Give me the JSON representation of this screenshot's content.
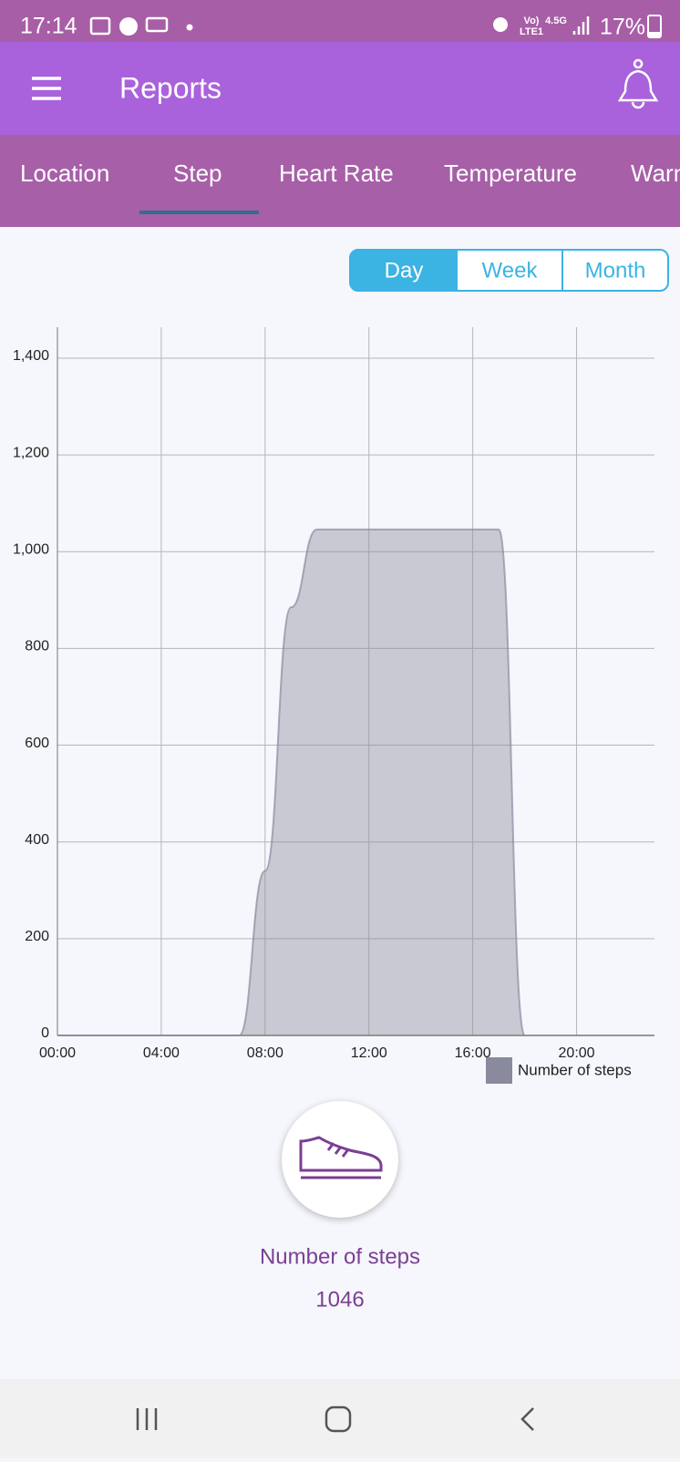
{
  "status_bar": {
    "time": "17:14",
    "volte": "Vo)",
    "lte": "LTE1",
    "network": "4.5G",
    "battery": "17%"
  },
  "app_bar": {
    "title": "Reports"
  },
  "tabs": [
    "Location",
    "Step",
    "Heart Rate",
    "Temperature",
    "Warning"
  ],
  "period_toggle": [
    "Day",
    "Week",
    "Month"
  ],
  "chart_data": {
    "type": "area",
    "x": [
      0,
      1,
      2,
      3,
      4,
      5,
      6,
      7,
      8,
      9,
      10,
      11,
      12,
      13,
      14,
      15,
      16,
      17,
      18
    ],
    "series": [
      {
        "name": "Number of steps",
        "color": "#8a8a9e",
        "values": [
          0,
          0,
          0,
          0,
          0,
          0,
          0,
          0,
          340,
          885,
          1046,
          1046,
          1046,
          1046,
          1046,
          1046,
          1046,
          1046,
          0
        ]
      }
    ],
    "xlim": [
      0,
      23
    ],
    "xticks": [
      {
        "value": 0,
        "label": "00:00"
      },
      {
        "value": 4,
        "label": "04:00"
      },
      {
        "value": 8,
        "label": "08:00"
      },
      {
        "value": 12,
        "label": "12:00"
      },
      {
        "value": 16,
        "label": "16:00"
      },
      {
        "value": 20,
        "label": "20:00"
      }
    ],
    "ylim": [
      0,
      1464
    ],
    "yticks": [
      0,
      200,
      400,
      600,
      800,
      {
        "value": 1000,
        "label": "1,000"
      },
      {
        "value": 1200,
        "label": "1,200"
      },
      {
        "value": 1400,
        "label": "1,400"
      }
    ],
    "grid": true,
    "legend": "bottom-right"
  },
  "summary": {
    "label": "Number of steps",
    "value": "1046"
  }
}
